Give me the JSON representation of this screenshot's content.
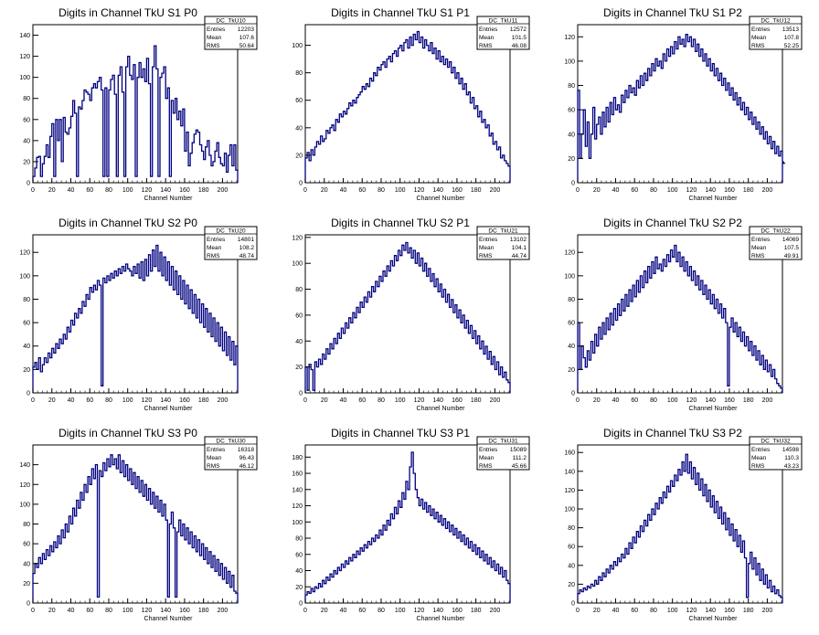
{
  "chart_data": [
    {
      "type": "histogram",
      "title": "Digits in Channel TkU S1 P0",
      "xlabel": "Channel Number",
      "ylabel": "",
      "xlim": [
        0,
        216
      ],
      "ylim": [
        0,
        150
      ],
      "xticks": [
        0,
        20,
        40,
        60,
        80,
        100,
        120,
        140,
        160,
        180,
        200
      ],
      "yticks": [
        0,
        20,
        40,
        60,
        80,
        100,
        120,
        140
      ],
      "stats": {
        "name": "DC_TkU10",
        "entries": "12203",
        "mean": "107.6",
        "rms": "50.64"
      },
      "bin_width": 2,
      "values": [
        6,
        14,
        24,
        25,
        6,
        18,
        25,
        36,
        24,
        44,
        56,
        6,
        60,
        40,
        60,
        20,
        62,
        48,
        46,
        52,
        63,
        78,
        66,
        6,
        72,
        70,
        78,
        88,
        86,
        84,
        78,
        90,
        94,
        90,
        96,
        100,
        88,
        6,
        90,
        6,
        88,
        98,
        102,
        84,
        6,
        102,
        110,
        86,
        6,
        110,
        120,
        102,
        98,
        112,
        6,
        100,
        114,
        100,
        108,
        96,
        118,
        94,
        6,
        110,
        130,
        108,
        6,
        100,
        104,
        110,
        80,
        90,
        6,
        78,
        66,
        80,
        60,
        68,
        54,
        70,
        30,
        48,
        16,
        28,
        38,
        46,
        50,
        48,
        36,
        30,
        22,
        34,
        40,
        26,
        16,
        20,
        30,
        38,
        24,
        18,
        16,
        28,
        10,
        26,
        36,
        16,
        36,
        12
      ]
    },
    {
      "type": "histogram",
      "title": "Digits in Channel TkU S1 P1",
      "xlabel": "Channel Number",
      "ylabel": "",
      "xlim": [
        0,
        216
      ],
      "ylim": [
        0,
        115
      ],
      "xticks": [
        0,
        20,
        40,
        60,
        80,
        100,
        120,
        140,
        160,
        180,
        200
      ],
      "yticks": [
        0,
        20,
        40,
        60,
        80,
        100
      ],
      "stats": {
        "name": "DC_TkU11",
        "entries": "12572",
        "mean": "101.5",
        "rms": "46.08"
      },
      "bin_width": 2,
      "values": [
        18,
        22,
        16,
        24,
        20,
        26,
        30,
        28,
        34,
        30,
        32,
        38,
        36,
        40,
        42,
        38,
        46,
        44,
        50,
        48,
        52,
        50,
        54,
        58,
        56,
        60,
        58,
        62,
        64,
        66,
        70,
        68,
        72,
        70,
        76,
        74,
        80,
        78,
        84,
        82,
        86,
        88,
        84,
        90,
        92,
        88,
        94,
        96,
        92,
        98,
        100,
        96,
        102,
        104,
        98,
        106,
        100,
        108,
        104,
        110,
        102,
        106,
        98,
        104,
        100,
        96,
        102,
        94,
        98,
        90,
        96,
        88,
        92,
        86,
        90,
        84,
        88,
        80,
        84,
        76,
        80,
        72,
        76,
        68,
        72,
        64,
        66,
        58,
        62,
        54,
        56,
        48,
        52,
        44,
        46,
        40,
        42,
        34,
        36,
        28,
        30,
        24,
        26,
        18,
        20,
        16,
        14,
        12
      ]
    },
    {
      "type": "histogram",
      "title": "Digits in Channel TkU S1 P2",
      "xlabel": "Channel Number",
      "ylabel": "",
      "xlim": [
        0,
        216
      ],
      "ylim": [
        0,
        130
      ],
      "xticks": [
        0,
        20,
        40,
        60,
        80,
        100,
        120,
        140,
        160,
        180,
        200
      ],
      "yticks": [
        0,
        20,
        40,
        60,
        80,
        100,
        120
      ],
      "stats": {
        "name": "DC_TkU12",
        "entries": "13513",
        "mean": "107.8",
        "rms": "52.25"
      },
      "bin_width": 2,
      "values": [
        76,
        20,
        40,
        60,
        30,
        50,
        20,
        40,
        62,
        36,
        48,
        54,
        40,
        58,
        46,
        62,
        50,
        66,
        56,
        70,
        60,
        64,
        58,
        72,
        66,
        76,
        70,
        80,
        74,
        78,
        72,
        84,
        78,
        88,
        80,
        90,
        84,
        94,
        88,
        98,
        92,
        102,
        96,
        100,
        94,
        106,
        100,
        110,
        104,
        112,
        106,
        116,
        110,
        120,
        114,
        118,
        112,
        122,
        116,
        120,
        112,
        118,
        108,
        114,
        104,
        110,
        100,
        106,
        96,
        102,
        92,
        98,
        88,
        94,
        84,
        90,
        80,
        86,
        76,
        82,
        72,
        78,
        68,
        74,
        64,
        70,
        60,
        66,
        56,
        62,
        52,
        58,
        48,
        54,
        44,
        50,
        40,
        46,
        36,
        42,
        32,
        38,
        28,
        34,
        24,
        30,
        22,
        26,
        18,
        16
      ]
    },
    {
      "type": "histogram",
      "title": "Digits in Channel TkU S2 P0",
      "xlabel": "Channel Number",
      "ylabel": "",
      "xlim": [
        0,
        216
      ],
      "ylim": [
        0,
        135
      ],
      "xticks": [
        0,
        20,
        40,
        60,
        80,
        100,
        120,
        140,
        160,
        180,
        200
      ],
      "yticks": [
        0,
        20,
        40,
        60,
        80,
        100,
        120
      ],
      "stats": {
        "name": "DC_TkU20",
        "entries": "14801",
        "mean": "108.2",
        "rms": "48.74"
      },
      "bin_width": 2,
      "values": [
        22,
        26,
        20,
        30,
        18,
        24,
        30,
        26,
        34,
        30,
        38,
        34,
        42,
        38,
        46,
        42,
        50,
        46,
        56,
        52,
        62,
        58,
        68,
        64,
        72,
        68,
        78,
        74,
        84,
        80,
        90,
        86,
        92,
        88,
        96,
        92,
        6,
        98,
        94,
        100,
        96,
        102,
        98,
        104,
        100,
        106,
        102,
        108,
        104,
        110,
        106,
        104,
        100,
        108,
        102,
        110,
        98,
        112,
        96,
        114,
        100,
        118,
        104,
        122,
        108,
        126,
        104,
        120,
        100,
        116,
        96,
        112,
        92,
        108,
        88,
        104,
        84,
        100,
        80,
        96,
        76,
        92,
        72,
        88,
        68,
        84,
        64,
        80,
        60,
        76,
        56,
        72,
        52,
        68,
        48,
        64,
        44,
        60,
        40,
        56,
        36,
        52,
        32,
        48,
        28,
        44,
        24,
        40
      ]
    },
    {
      "type": "histogram",
      "title": "Digits in Channel TkU S2 P1",
      "xlabel": "Channel Number",
      "ylabel": "",
      "xlim": [
        0,
        216
      ],
      "ylim": [
        0,
        122
      ],
      "xticks": [
        0,
        20,
        40,
        60,
        80,
        100,
        120,
        140,
        160,
        180,
        200
      ],
      "yticks": [
        0,
        20,
        40,
        60,
        80,
        100,
        120
      ],
      "stats": {
        "name": "DC_TkU21",
        "entries": "13102",
        "mean": "104.1",
        "rms": "44.74"
      },
      "bin_width": 2,
      "values": [
        20,
        2,
        22,
        18,
        2,
        24,
        20,
        26,
        22,
        30,
        26,
        34,
        30,
        38,
        34,
        42,
        38,
        46,
        42,
        50,
        46,
        54,
        50,
        58,
        54,
        62,
        58,
        66,
        62,
        70,
        66,
        74,
        70,
        78,
        74,
        82,
        78,
        86,
        82,
        90,
        86,
        94,
        90,
        98,
        94,
        102,
        98,
        106,
        102,
        110,
        106,
        114,
        110,
        116,
        108,
        112,
        104,
        110,
        100,
        108,
        98,
        104,
        94,
        100,
        90,
        96,
        86,
        92,
        82,
        88,
        78,
        84,
        74,
        80,
        70,
        76,
        66,
        72,
        62,
        68,
        58,
        64,
        54,
        60,
        50,
        56,
        46,
        52,
        42,
        48,
        38,
        44,
        34,
        40,
        30,
        36,
        26,
        32,
        22,
        28,
        18,
        24,
        14,
        20,
        12,
        16,
        10,
        8
      ]
    },
    {
      "type": "histogram",
      "title": "Digits in Channel TkU S2 P2",
      "xlabel": "Channel Number",
      "ylabel": "",
      "xlim": [
        0,
        216
      ],
      "ylim": [
        0,
        135
      ],
      "xticks": [
        0,
        20,
        40,
        60,
        80,
        100,
        120,
        140,
        160,
        180,
        200
      ],
      "yticks": [
        0,
        20,
        40,
        60,
        80,
        100,
        120
      ],
      "stats": {
        "name": "DC_TkU22",
        "entries": "14069",
        "mean": "107.5",
        "rms": "49.91"
      },
      "bin_width": 2,
      "values": [
        60,
        20,
        40,
        30,
        22,
        36,
        28,
        44,
        34,
        50,
        40,
        56,
        46,
        60,
        50,
        64,
        54,
        68,
        58,
        72,
        62,
        76,
        66,
        80,
        70,
        84,
        74,
        88,
        78,
        92,
        82,
        96,
        86,
        100,
        90,
        104,
        94,
        108,
        98,
        112,
        102,
        116,
        106,
        110,
        104,
        114,
        108,
        118,
        112,
        122,
        116,
        126,
        112,
        120,
        108,
        116,
        104,
        112,
        100,
        108,
        96,
        104,
        92,
        100,
        88,
        96,
        84,
        92,
        80,
        88,
        76,
        84,
        72,
        80,
        68,
        76,
        64,
        72,
        60,
        6,
        56,
        64,
        52,
        60,
        48,
        56,
        44,
        52,
        40,
        48,
        36,
        44,
        32,
        40,
        28,
        36,
        24,
        32,
        20,
        28,
        18,
        24,
        14,
        20,
        12,
        8,
        6,
        4
      ]
    },
    {
      "type": "histogram",
      "title": "Digits in Channel TkU S3 P0",
      "xlabel": "Channel Number",
      "ylabel": "",
      "xlim": [
        0,
        216
      ],
      "ylim": [
        0,
        160
      ],
      "xticks": [
        0,
        20,
        40,
        60,
        80,
        100,
        120,
        140,
        160,
        180,
        200
      ],
      "yticks": [
        0,
        20,
        40,
        60,
        80,
        100,
        120,
        140
      ],
      "stats": {
        "name": "DC_TkU30",
        "entries": "16318",
        "mean": "96.43",
        "rms": "46.12"
      },
      "bin_width": 2,
      "values": [
        30,
        40,
        36,
        46,
        40,
        50,
        44,
        54,
        48,
        58,
        52,
        62,
        56,
        68,
        60,
        74,
        66,
        80,
        72,
        88,
        80,
        96,
        88,
        104,
        96,
        112,
        104,
        120,
        112,
        128,
        120,
        136,
        126,
        140,
        6,
        134,
        128,
        142,
        134,
        146,
        138,
        150,
        140,
        146,
        136,
        150,
        132,
        144,
        128,
        140,
        124,
        136,
        120,
        132,
        116,
        128,
        112,
        124,
        108,
        120,
        104,
        116,
        100,
        112,
        96,
        108,
        92,
        104,
        88,
        100,
        84,
        6,
        80,
        92,
        76,
        6,
        72,
        84,
        68,
        80,
        64,
        76,
        60,
        72,
        56,
        68,
        52,
        64,
        48,
        60,
        44,
        56,
        40,
        52,
        36,
        48,
        32,
        44,
        28,
        40,
        24,
        36,
        20,
        32,
        16,
        28,
        12,
        10
      ]
    },
    {
      "type": "histogram",
      "title": "Digits in Channel TkU S3 P1",
      "xlabel": "Channel Number",
      "ylabel": "",
      "xlim": [
        0,
        216
      ],
      "ylim": [
        0,
        195
      ],
      "xticks": [
        0,
        20,
        40,
        60,
        80,
        100,
        120,
        140,
        160,
        180,
        200
      ],
      "yticks": [
        0,
        20,
        40,
        60,
        80,
        100,
        120,
        140,
        160,
        180
      ],
      "stats": {
        "name": "DC_TkU31",
        "entries": "15089",
        "mean": "111.2",
        "rms": "45.66"
      },
      "bin_width": 2,
      "values": [
        10,
        14,
        12,
        18,
        14,
        20,
        18,
        24,
        20,
        28,
        24,
        32,
        28,
        36,
        32,
        40,
        36,
        44,
        40,
        48,
        44,
        52,
        48,
        56,
        52,
        60,
        56,
        64,
        60,
        68,
        64,
        72,
        68,
        76,
        72,
        80,
        76,
        84,
        80,
        90,
        84,
        96,
        90,
        102,
        96,
        110,
        104,
        118,
        110,
        126,
        118,
        136,
        128,
        150,
        140,
        168,
        186,
        160,
        140,
        130,
        120,
        128,
        116,
        124,
        112,
        120,
        108,
        116,
        104,
        112,
        100,
        108,
        96,
        104,
        92,
        100,
        88,
        96,
        84,
        92,
        80,
        88,
        76,
        84,
        72,
        80,
        68,
        76,
        64,
        72,
        60,
        68,
        56,
        64,
        52,
        60,
        48,
        56,
        44,
        52,
        40,
        48,
        36,
        44,
        32,
        40,
        28,
        24
      ]
    },
    {
      "type": "histogram",
      "title": "Digits in Channel TkU S3 P2",
      "xlabel": "Channel Number",
      "ylabel": "",
      "xlim": [
        0,
        216
      ],
      "ylim": [
        0,
        168
      ],
      "xticks": [
        0,
        20,
        40,
        60,
        80,
        100,
        120,
        140,
        160,
        180,
        200
      ],
      "yticks": [
        0,
        20,
        40,
        60,
        80,
        100,
        120,
        140,
        160
      ],
      "stats": {
        "name": "DC_TkU32",
        "entries": "14598",
        "mean": "110.3",
        "rms": "43.23"
      },
      "bin_width": 2,
      "values": [
        10,
        14,
        12,
        16,
        14,
        18,
        16,
        20,
        18,
        24,
        20,
        28,
        24,
        32,
        28,
        36,
        32,
        40,
        36,
        44,
        40,
        48,
        44,
        52,
        48,
        58,
        52,
        64,
        58,
        70,
        64,
        76,
        70,
        82,
        76,
        88,
        82,
        94,
        88,
        100,
        94,
        106,
        100,
        112,
        106,
        118,
        112,
        124,
        118,
        130,
        124,
        136,
        130,
        142,
        136,
        150,
        140,
        158,
        138,
        150,
        132,
        144,
        126,
        138,
        120,
        132,
        114,
        126,
        108,
        120,
        102,
        114,
        96,
        108,
        90,
        102,
        84,
        96,
        78,
        90,
        72,
        84,
        66,
        78,
        60,
        72,
        54,
        66,
        48,
        6,
        42,
        54,
        36,
        48,
        30,
        42,
        24,
        36,
        20,
        30,
        16,
        24,
        12,
        18,
        10,
        14,
        8,
        6
      ]
    }
  ],
  "stats_labels": {
    "entries": "Entries",
    "mean": "Mean",
    "rms": "RMS"
  },
  "colors": {
    "line": "#000080",
    "axis": "#000000"
  }
}
